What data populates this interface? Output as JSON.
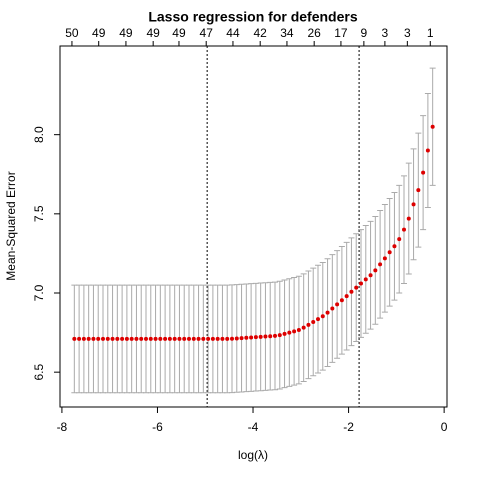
{
  "chart_data": {
    "type": "errorbar",
    "title": "Lasso regression for defenders",
    "xlabel": "log(λ)",
    "ylabel": "Mean-Squared Error",
    "x": [
      -7.74,
      -7.64,
      -7.54,
      -7.44,
      -7.34,
      -7.24,
      -7.14,
      -7.04,
      -6.94,
      -6.84,
      -6.74,
      -6.64,
      -6.54,
      -6.44,
      -6.34,
      -6.24,
      -6.14,
      -6.04,
      -5.94,
      -5.84,
      -5.74,
      -5.64,
      -5.54,
      -5.44,
      -5.34,
      -5.24,
      -5.14,
      -5.04,
      -4.94,
      -4.84,
      -4.74,
      -4.64,
      -4.54,
      -4.44,
      -4.34,
      -4.24,
      -4.14,
      -4.04,
      -3.94,
      -3.84,
      -3.74,
      -3.64,
      -3.54,
      -3.44,
      -3.34,
      -3.24,
      -3.14,
      -3.04,
      -2.94,
      -2.84,
      -2.74,
      -2.64,
      -2.54,
      -2.44,
      -2.34,
      -2.24,
      -2.14,
      -2.04,
      -1.94,
      -1.84,
      -1.74,
      -1.64,
      -1.54,
      -1.44,
      -1.34,
      -1.24,
      -1.14,
      -1.04,
      -0.94,
      -0.84,
      -0.74,
      -0.64,
      -0.54,
      -0.44,
      -0.34,
      -0.24
    ],
    "values": [
      6.71,
      6.71,
      6.71,
      6.71,
      6.71,
      6.71,
      6.71,
      6.71,
      6.71,
      6.71,
      6.71,
      6.71,
      6.71,
      6.71,
      6.71,
      6.71,
      6.71,
      6.71,
      6.71,
      6.71,
      6.71,
      6.71,
      6.71,
      6.71,
      6.71,
      6.71,
      6.71,
      6.71,
      6.71,
      6.71,
      6.71,
      6.71,
      6.71,
      6.711,
      6.713,
      6.715,
      6.717,
      6.719,
      6.721,
      6.723,
      6.725,
      6.727,
      6.729,
      6.734,
      6.742,
      6.75,
      6.758,
      6.766,
      6.781,
      6.799,
      6.817,
      6.835,
      6.853,
      6.876,
      6.902,
      6.928,
      6.954,
      6.98,
      7.008,
      7.034,
      7.06,
      7.086,
      7.112,
      7.143,
      7.181,
      7.219,
      7.257,
      7.295,
      7.34,
      7.4,
      7.47,
      7.56,
      7.65,
      7.76,
      7.9,
      8.05
    ],
    "errors": [
      0.34,
      0.34,
      0.34,
      0.34,
      0.34,
      0.34,
      0.34,
      0.34,
      0.34,
      0.34,
      0.34,
      0.34,
      0.34,
      0.34,
      0.34,
      0.34,
      0.34,
      0.34,
      0.34,
      0.34,
      0.34,
      0.34,
      0.34,
      0.34,
      0.34,
      0.34,
      0.34,
      0.34,
      0.34,
      0.34,
      0.34,
      0.34,
      0.34,
      0.34,
      0.34,
      0.34,
      0.34,
      0.34,
      0.34,
      0.34,
      0.34,
      0.34,
      0.34,
      0.34,
      0.34,
      0.34,
      0.34,
      0.34,
      0.34,
      0.34,
      0.34,
      0.34,
      0.34,
      0.34,
      0.34,
      0.34,
      0.34,
      0.34,
      0.34,
      0.34,
      0.34,
      0.34,
      0.34,
      0.34,
      0.34,
      0.34,
      0.34,
      0.34,
      0.34,
      0.34,
      0.35,
      0.35,
      0.36,
      0.36,
      0.36,
      0.37
    ],
    "color": "#dd0000",
    "error_color": "#aaaaaa",
    "xlim": [
      -8.04,
      0.06
    ],
    "xticks": [
      -8,
      -6,
      -4,
      -2,
      0
    ],
    "ylim": [
      6.28,
      8.56
    ],
    "yticks": [
      6.5,
      {
        "value": 7,
        "label": "7.0"
      },
      7.5,
      {
        "value": 8,
        "label": "8.0"
      }
    ],
    "top_ticks": [
      {
        "value": -7.79,
        "label": "50"
      },
      {
        "value": -7.23,
        "label": "49"
      },
      {
        "value": -6.66,
        "label": "49"
      },
      {
        "value": -6.09,
        "label": "49"
      },
      {
        "value": -5.55,
        "label": "49"
      },
      {
        "value": -4.98,
        "label": "47"
      },
      {
        "value": -4.42,
        "label": "44"
      },
      {
        "value": -3.85,
        "label": "42"
      },
      {
        "value": -3.29,
        "label": "34"
      },
      {
        "value": -2.72,
        "label": "26"
      },
      {
        "value": -2.16,
        "label": "17"
      },
      {
        "value": -1.68,
        "label": "9"
      },
      {
        "value": -1.24,
        "label": "3"
      },
      {
        "value": -0.77,
        "label": "3"
      },
      {
        "value": -0.29,
        "label": "1"
      }
    ],
    "vlines": [
      -4.96,
      -1.78
    ]
  }
}
